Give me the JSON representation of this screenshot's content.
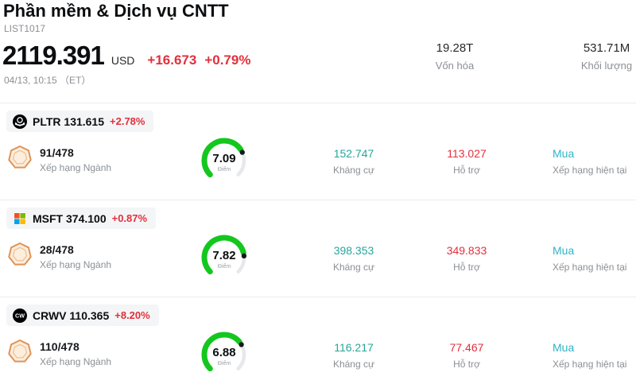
{
  "header": {
    "title": "Phần mềm & Dịch vụ CNTT",
    "list_id": "LIST1017",
    "price": "2119.391",
    "currency": "USD",
    "change": "+16.673",
    "change_pct": "+0.79%",
    "datetime": "04/13, 10:15 （ET）",
    "market_cap": {
      "value": "19.28T",
      "label": "Vốn hóa"
    },
    "volume": {
      "value": "531.71M",
      "label": "Khối lượng"
    }
  },
  "labels": {
    "rank_label": "Xếp hạng Ngành",
    "score_label": "Điểm",
    "resistance_label": "Kháng cự",
    "support_label": "Hỗ trợ",
    "rating_label": "Xếp hạng hiện tại"
  },
  "stocks": [
    {
      "ticker": "PLTR",
      "price": "131.615",
      "ticker_price": "PLTR 131.615",
      "change_pct": "+2.78%",
      "rank": "91/478",
      "score": "7.09",
      "score_value": 7.09,
      "resistance": "152.747",
      "support": "113.027",
      "rating": "Mua",
      "logo_icon": "palantir-logo"
    },
    {
      "ticker": "MSFT",
      "price": "374.100",
      "ticker_price": "MSFT 374.100",
      "change_pct": "+0.87%",
      "rank": "28/478",
      "score": "7.82",
      "score_value": 7.82,
      "resistance": "398.353",
      "support": "349.833",
      "rating": "Mua",
      "logo_icon": "microsoft-logo"
    },
    {
      "ticker": "CRWV",
      "price": "110.365",
      "ticker_price": "CRWV 110.365",
      "change_pct": "+8.20%",
      "rank": "110/478",
      "score": "6.88",
      "score_value": 6.88,
      "logo_text": "CW",
      "resistance": "116.217",
      "support": "77.467",
      "rating": "Mua",
      "logo_icon": "coreweave-logo"
    }
  ],
  "colors": {
    "red": "#e2303c",
    "teal": "#26a69a",
    "cyan": "#2fb3c7",
    "gauge_green": "#14c71e",
    "gray_text": "#8b8f94"
  }
}
